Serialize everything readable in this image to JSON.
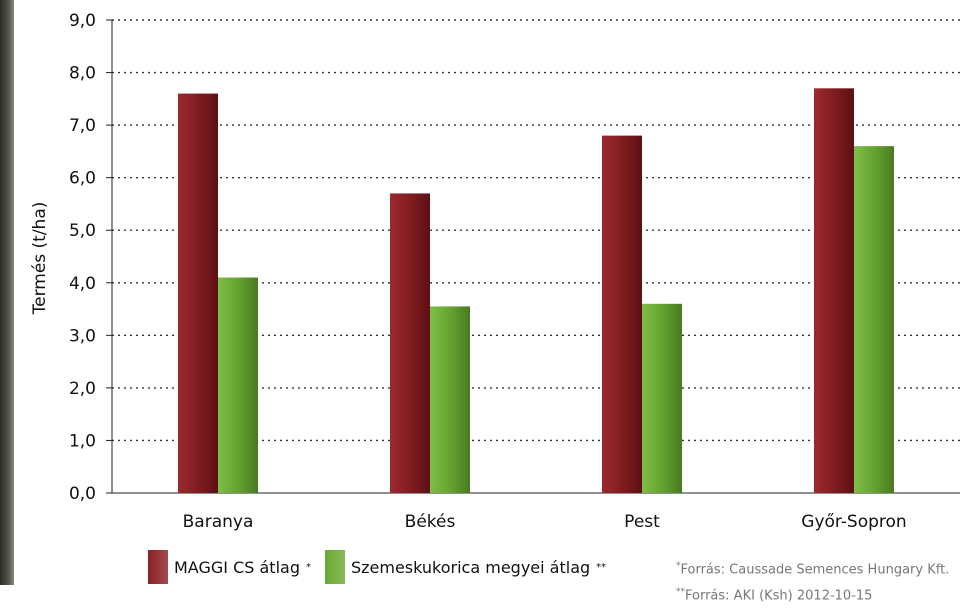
{
  "chart_data": {
    "type": "bar",
    "ylabel": "Termés (t/ha)",
    "ylim": [
      0,
      9
    ],
    "yticks": [
      "0,0",
      "1,0",
      "2,0",
      "3,0",
      "4,0",
      "5,0",
      "6,0",
      "7,0",
      "8,0",
      "9,0"
    ],
    "grid": "horizontal dotted",
    "categories": [
      "Baranya",
      "Békés",
      "Pest",
      "Győr-Sopron"
    ],
    "series": [
      {
        "name": "MAGGI CS átlag",
        "marker": "*",
        "color": "#8b1f23",
        "values": [
          7.6,
          5.7,
          6.8,
          7.7
        ]
      },
      {
        "name": "Szemeskukorica megyei átlag",
        "marker": "**",
        "color": "#6aa832",
        "values": [
          4.1,
          3.55,
          3.6,
          6.6
        ]
      }
    ],
    "legend_position": "bottom-left"
  },
  "footnotes": [
    {
      "marker": "*",
      "text": "Forrás:  Caussade Semences Hungary Kft."
    },
    {
      "marker": "**",
      "text": "Forrás: AKI (Ksh) 2012-10-15"
    }
  ]
}
